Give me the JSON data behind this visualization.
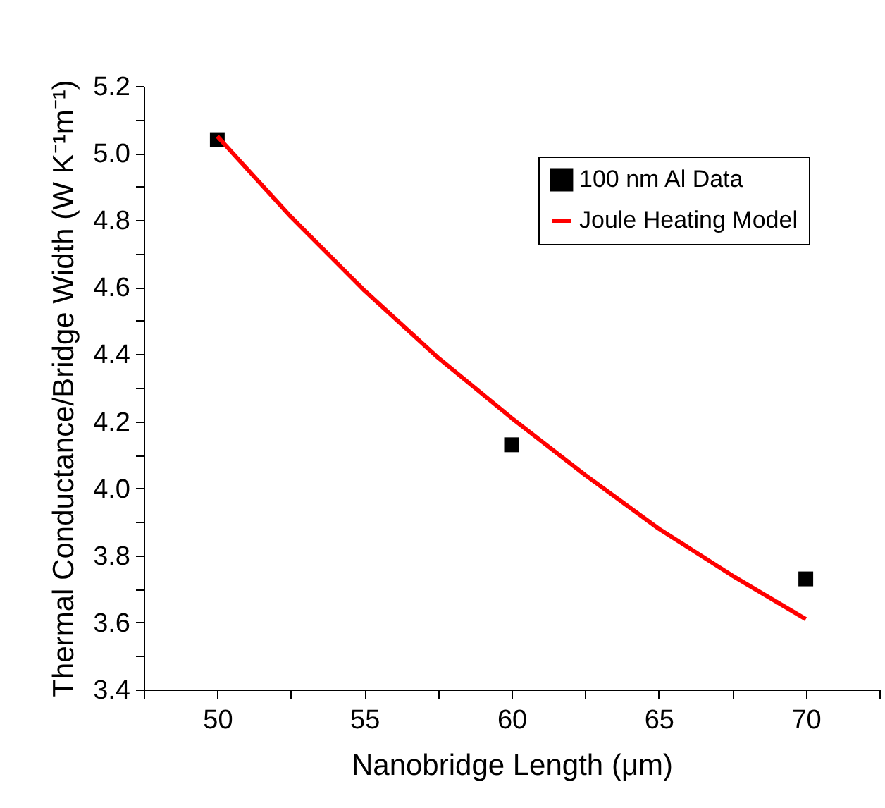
{
  "chart_data": {
    "type": "scatter",
    "xlabel": "Nanobridge Length (μm)",
    "ylabel": "Thermal Conductance/Bridge Width (W K⁻¹m⁻¹)",
    "xlim": [
      47.5,
      72.5
    ],
    "xticks": [
      {
        "value": 47.5,
        "label": null
      },
      50,
      {
        "value": 52.5,
        "label": null
      },
      55,
      {
        "value": 57.5,
        "label": null
      },
      60,
      {
        "value": 62.5,
        "label": null
      },
      65,
      {
        "value": 67.5,
        "label": null
      },
      70,
      {
        "value": 72.5,
        "label": null
      }
    ],
    "ylim": [
      3.4,
      5.2
    ],
    "yticks": [
      3.4,
      {
        "value": 3.5,
        "label": null
      },
      3.6,
      {
        "value": 3.7,
        "label": null
      },
      3.8,
      {
        "value": 3.9,
        "label": null
      },
      {
        "value": 4,
        "label": "4.0"
      },
      {
        "value": 4.1,
        "label": null
      },
      4.2,
      {
        "value": 4.3,
        "label": null
      },
      4.4,
      {
        "value": 4.5,
        "label": null
      },
      4.6,
      {
        "value": 4.7,
        "label": null
      },
      4.8,
      {
        "value": 4.9,
        "label": null
      },
      {
        "value": 5,
        "label": "5.0"
      },
      {
        "value": 5.1,
        "label": null
      },
      5.2
    ],
    "grid": false,
    "legend": "top right",
    "series": [
      {
        "name": "100 nm Al Data",
        "marker": "square",
        "color": "#000000",
        "x": [
          50,
          60,
          70
        ],
        "values": [
          5.04,
          4.13,
          3.73
        ]
      },
      {
        "name": "Joule Heating Model",
        "type": "line",
        "color": "#ff0000",
        "line_style": "solid",
        "x": [
          50,
          52.5,
          55,
          57.5,
          60,
          62.5,
          65,
          67.5,
          70
        ],
        "values": [
          5.05,
          4.81,
          4.59,
          4.39,
          4.21,
          4.04,
          3.88,
          3.74,
          3.61
        ]
      }
    ]
  }
}
